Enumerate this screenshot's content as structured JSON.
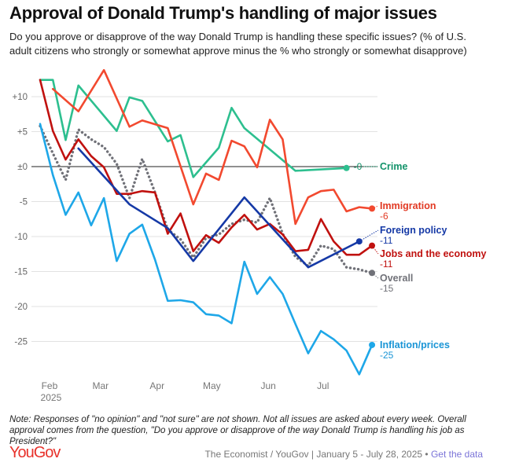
{
  "title": "Approval of Donald Trump's handling of major issues",
  "subtitle": "Do you approve or disapprove of the way Donald Trump is handling these specific issues? (% of U.S. adult citizens who strongly or somewhat approve minus the % who strongly or somewhat disapprove)",
  "note": "Note: Responses of \"no opinion\" and \"not sure\" are not shown. Not all issues are asked about every week. Overall approval comes from the question, \"Do you approve or disapprove of the way Donald Trump is handling his job as President?\"",
  "footer": {
    "logo": "YouGov",
    "source": "The Economist / YouGov | January 5 - July 28, 2025 • ",
    "get_data": "Get the data"
  },
  "chart_data": {
    "type": "line",
    "title": "Approval of Donald Trump's handling of major issues",
    "xlabel": "",
    "ylabel": "",
    "ylim": [
      -31,
      13.5
    ],
    "grid": true,
    "legend": "direct labels at right end of lines",
    "y_ticks": [
      {
        "v": 10,
        "label": "+10"
      },
      {
        "v": 5,
        "label": "+5"
      },
      {
        "v": 0,
        "label": "±0"
      },
      {
        "v": -5,
        "label": "-5"
      },
      {
        "v": -10,
        "label": "-10"
      },
      {
        "v": -15,
        "label": "-15"
      },
      {
        "v": -20,
        "label": "-20"
      },
      {
        "v": -25,
        "label": "-25"
      }
    ],
    "x_ticks": [
      {
        "date": "2025-02-01",
        "label": "Feb",
        "sub": "2025"
      },
      {
        "date": "2025-03-01",
        "label": "Mar",
        "sub": ""
      },
      {
        "date": "2025-04-01",
        "label": "Apr",
        "sub": ""
      },
      {
        "date": "2025-05-01",
        "label": "May",
        "sub": ""
      },
      {
        "date": "2025-06-01",
        "label": "Jun",
        "sub": ""
      },
      {
        "date": "2025-07-01",
        "label": "Jul",
        "sub": ""
      }
    ],
    "x": [
      "2025-01-26",
      "2025-02-02",
      "2025-02-09",
      "2025-02-16",
      "2025-02-23",
      "2025-03-02",
      "2025-03-09",
      "2025-03-16",
      "2025-03-23",
      "2025-03-30",
      "2025-04-06",
      "2025-04-13",
      "2025-04-20",
      "2025-04-27",
      "2025-05-04",
      "2025-05-11",
      "2025-05-18",
      "2025-05-25",
      "2025-06-01",
      "2025-06-08",
      "2025-06-15",
      "2025-06-22",
      "2025-06-29",
      "2025-07-06",
      "2025-07-13",
      "2025-07-20",
      "2025-07-27"
    ],
    "series": [
      {
        "name": "Crime",
        "end_label": "-0",
        "color": "#2dbf8f",
        "label_color": "#13936a",
        "dotted": false,
        "values": [
          12.4,
          12.4,
          3.8,
          11.6,
          null,
          null,
          5.1,
          9.9,
          9.4,
          null,
          3.6,
          4.5,
          -1.5,
          null,
          2.7,
          8.4,
          5.5,
          null,
          null,
          null,
          -0.6,
          null,
          null,
          null,
          -0.2,
          null,
          null
        ]
      },
      {
        "name": "Immigration",
        "end_label": "-6",
        "color": "#f2492f",
        "label_color": "#e23a24",
        "dotted": false,
        "values": [
          null,
          11.1,
          null,
          7.9,
          null,
          13.8,
          null,
          5.7,
          6.6,
          null,
          5.5,
          null,
          -5.4,
          -1.0,
          -1.9,
          3.7,
          2.9,
          -0.1,
          6.7,
          3.9,
          -8.2,
          -4.4,
          -3.5,
          -3.3,
          -6.4,
          -5.8,
          -6.0
        ]
      },
      {
        "name": "Foreign policy",
        "end_label": "-11",
        "color": "#1539a6",
        "label_color": "#1539a6",
        "dotted": false,
        "values": [
          null,
          null,
          null,
          2.6,
          null,
          null,
          null,
          -5.4,
          null,
          null,
          -8.8,
          null,
          -13.5,
          null,
          null,
          null,
          -4.4,
          null,
          null,
          null,
          null,
          -14.4,
          null,
          null,
          null,
          -10.7,
          null
        ]
      },
      {
        "name": "Jobs and the economy",
        "end_label": "-11",
        "color": "#c0110f",
        "label_color": "#c0110f",
        "dotted": false,
        "values": [
          12.4,
          5.1,
          1.0,
          3.9,
          1.5,
          -0.1,
          -3.9,
          -3.9,
          -3.5,
          -3.7,
          -9.6,
          -6.7,
          -12.1,
          -9.8,
          -10.9,
          -8.7,
          -6.9,
          -9.0,
          -8.2,
          -9.7,
          -12.1,
          -11.9,
          -7.5,
          -10.7,
          -12.6,
          -12.6,
          -11.3
        ]
      },
      {
        "name": "Overall",
        "end_label": "-15",
        "color": "#707178",
        "label_color": "#707178",
        "dotted": true,
        "values": [
          5.8,
          1.9,
          -1.9,
          5.3,
          3.9,
          2.8,
          0.4,
          -4.5,
          1.1,
          -3.7,
          -9.0,
          -10.4,
          -13.0,
          -10.2,
          -9.7,
          -8.2,
          -7.6,
          -8.0,
          -4.5,
          -9.6,
          -12.9,
          -14.2,
          -11.3,
          -11.8,
          -14.4,
          -14.7,
          -15.2
        ]
      },
      {
        "name": "Inflation/prices",
        "end_label": "-25",
        "color": "#1ea7e8",
        "label_color": "#1a95d6",
        "dotted": false,
        "values": [
          6.1,
          -1.2,
          -6.9,
          -3.7,
          -8.4,
          -4.5,
          -13.5,
          -9.6,
          -8.3,
          -13.3,
          -19.2,
          -19.1,
          -19.4,
          -21.1,
          -21.3,
          -22.4,
          -13.6,
          -18.2,
          -15.8,
          -18.2,
          -22.5,
          -26.7,
          -23.5,
          -24.7,
          -26.3,
          -29.7,
          -25.5
        ]
      }
    ]
  }
}
